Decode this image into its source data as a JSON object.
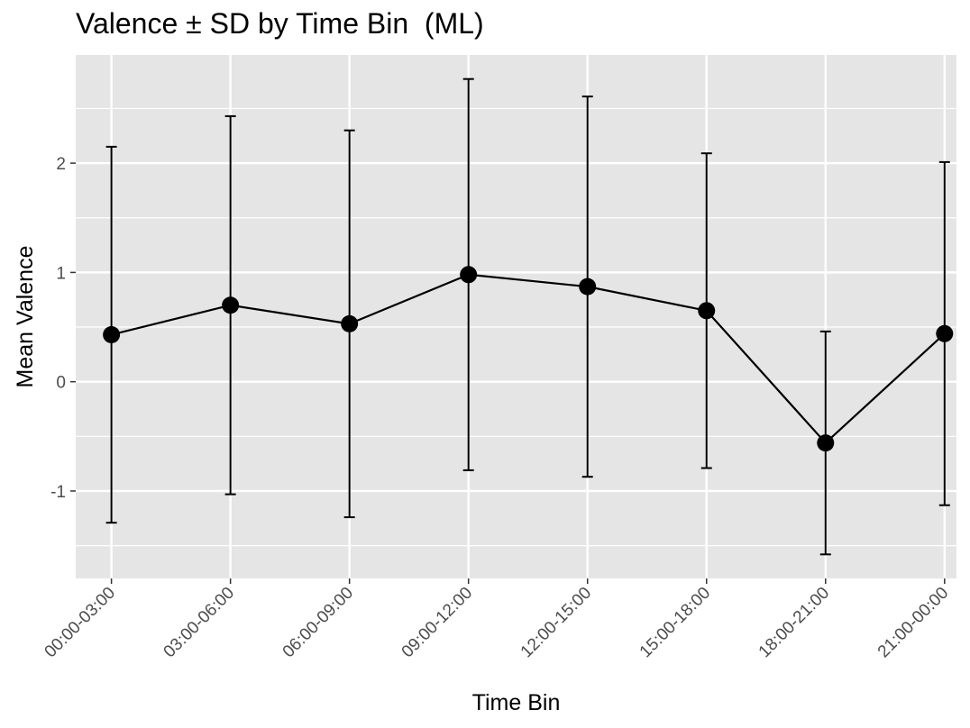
{
  "chart_data": {
    "type": "line",
    "title": "Valence ± SD by Time Bin  (ML)",
    "xlabel": "Time Bin",
    "ylabel": "Mean Valence",
    "categories": [
      "00:00-03:00",
      "03:00-06:00",
      "06:00-09:00",
      "09:00-12:00",
      "12:00-15:00",
      "15:00-18:00",
      "18:00-21:00",
      "21:00-00:00"
    ],
    "series": [
      {
        "mean": [
          0.43,
          0.7,
          0.53,
          0.98,
          0.87,
          0.65,
          -0.56,
          0.44
        ],
        "sd": [
          1.72,
          1.73,
          1.77,
          1.79,
          1.74,
          1.44,
          1.02,
          1.57
        ]
      }
    ],
    "yticks": [
      -1,
      0,
      1,
      2
    ],
    "ylim": [
      -1.8,
      2.99
    ],
    "grid": true,
    "colors": {
      "panel": "#e5e5e5",
      "grid": "#ffffff",
      "line": "#000000",
      "tick_text": "#4d4d4d"
    }
  }
}
